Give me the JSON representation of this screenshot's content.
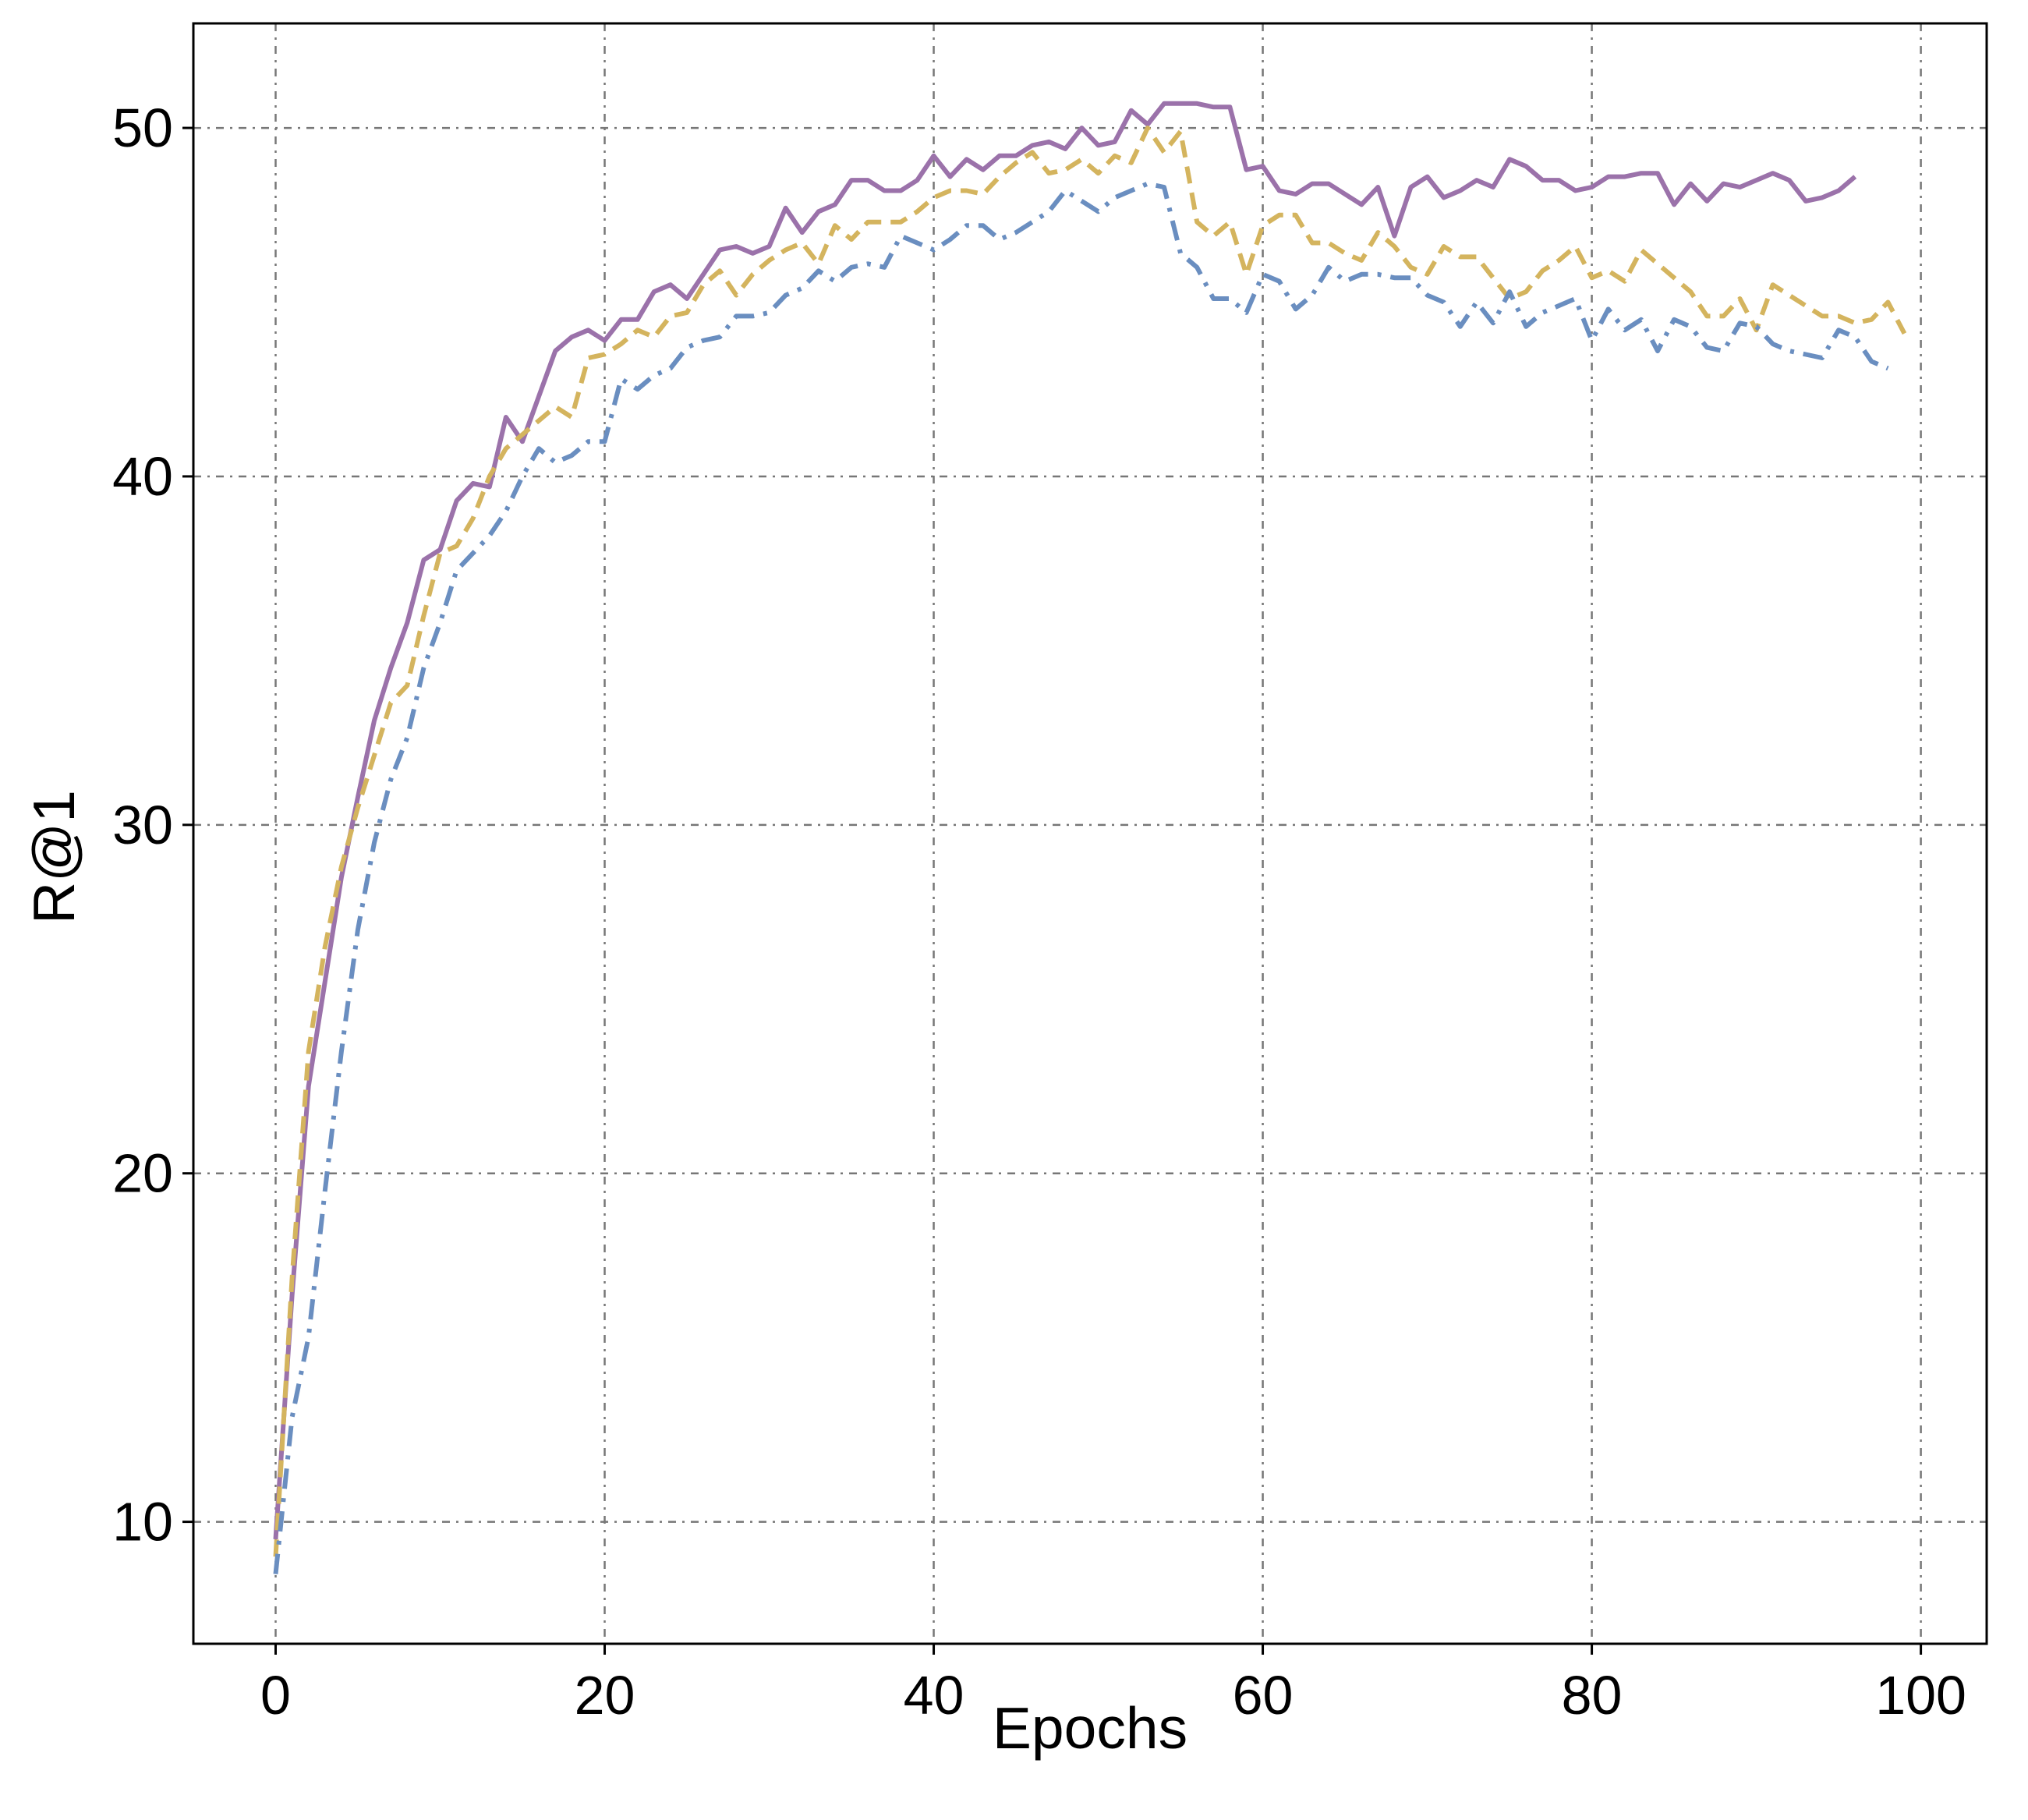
{
  "chart_data": {
    "type": "line",
    "title": "",
    "xlabel": "Epochs",
    "ylabel": "R@1",
    "xlim": [
      -5,
      104
    ],
    "ylim": [
      6.5,
      53
    ],
    "xticks": [
      0,
      20,
      40,
      60,
      80,
      100
    ],
    "yticks": [
      10,
      20,
      30,
      40,
      50
    ],
    "grid": true,
    "legend": "none",
    "series": [
      {
        "color": "#9b72aa",
        "style": "solid",
        "x": [
          0,
          1,
          2,
          3,
          4,
          5,
          6,
          7,
          8,
          9,
          10,
          11,
          12,
          13,
          14,
          15,
          16,
          17,
          18,
          19,
          20,
          21,
          22,
          23,
          24,
          25,
          26,
          27,
          28,
          29,
          30,
          31,
          32,
          33,
          34,
          35,
          36,
          37,
          38,
          39,
          40,
          41,
          42,
          43,
          44,
          45,
          46,
          47,
          48,
          49,
          50,
          51,
          52,
          53,
          54,
          55,
          56,
          57,
          58,
          59,
          60,
          61,
          62,
          63,
          64,
          65,
          66,
          67,
          68,
          69,
          70,
          71,
          72,
          73,
          74,
          75,
          76,
          77,
          78,
          79,
          80,
          81,
          82,
          83,
          84,
          85,
          86,
          87,
          88,
          89,
          90,
          91,
          92,
          93,
          94,
          95,
          96
        ],
        "values": [
          9.5,
          16.5,
          22.5,
          25.5,
          28.5,
          30.8,
          33.0,
          34.5,
          35.8,
          37.6,
          37.9,
          39.3,
          39.8,
          39.7,
          41.7,
          41.0,
          42.3,
          43.6,
          44.0,
          44.2,
          43.9,
          44.5,
          44.5,
          45.3,
          45.5,
          45.1,
          45.8,
          46.5,
          46.6,
          46.4,
          46.6,
          47.7,
          47.0,
          47.6,
          47.8,
          48.5,
          48.5,
          48.2,
          48.2,
          48.5,
          49.2,
          48.6,
          49.1,
          48.8,
          49.2,
          49.2,
          49.5,
          49.6,
          49.4,
          50.0,
          49.5,
          49.6,
          50.5,
          50.1,
          50.7,
          50.7,
          50.7,
          50.6,
          50.6,
          48.8,
          48.9,
          48.2,
          48.1,
          48.4,
          48.4,
          48.1,
          47.8,
          48.3,
          46.9,
          48.3,
          48.6,
          48.0,
          48.2,
          48.5,
          48.3,
          49.1,
          48.9,
          48.5,
          48.5,
          48.2,
          48.3,
          48.6,
          48.6,
          48.7,
          48.7,
          47.8,
          48.4,
          47.9,
          48.4,
          48.3,
          48.5,
          48.7,
          48.5,
          47.9,
          48.0,
          48.2,
          48.6
        ]
      },
      {
        "color": "#d4b45e",
        "style": "dashed",
        "x": [
          0,
          1,
          2,
          3,
          4,
          5,
          6,
          7,
          8,
          9,
          10,
          11,
          12,
          13,
          14,
          15,
          16,
          17,
          18,
          19,
          20,
          21,
          22,
          23,
          24,
          25,
          26,
          27,
          28,
          29,
          30,
          31,
          32,
          33,
          34,
          35,
          36,
          37,
          38,
          39,
          40,
          41,
          42,
          43,
          44,
          45,
          46,
          47,
          48,
          49,
          50,
          51,
          52,
          53,
          54,
          55,
          56,
          57,
          58,
          59,
          60,
          61,
          62,
          63,
          64,
          65,
          66,
          67,
          68,
          69,
          70,
          71,
          72,
          73,
          74,
          75,
          76,
          77,
          78,
          79,
          80,
          81,
          82,
          83,
          84,
          85,
          86,
          87,
          88,
          89,
          90,
          91,
          92,
          93,
          94,
          95,
          96,
          97,
          98,
          99
        ],
        "values": [
          9.0,
          17.0,
          23.5,
          26.5,
          28.8,
          30.5,
          32.0,
          33.5,
          34.0,
          36.0,
          37.8,
          38.0,
          38.8,
          40.0,
          40.8,
          41.2,
          41.6,
          42.0,
          41.7,
          43.4,
          43.5,
          43.8,
          44.2,
          44.0,
          44.6,
          44.7,
          45.5,
          45.9,
          45.2,
          45.8,
          46.2,
          46.5,
          46.7,
          46.1,
          47.2,
          46.8,
          47.3,
          47.3,
          47.3,
          47.6,
          48.0,
          48.2,
          48.2,
          48.1,
          48.6,
          49.0,
          49.3,
          48.7,
          48.8,
          49.1,
          48.7,
          49.2,
          49.0,
          50.0,
          49.3,
          49.9,
          47.3,
          46.9,
          47.3,
          45.8,
          47.2,
          47.5,
          47.5,
          46.7,
          46.7,
          46.4,
          46.2,
          47.0,
          46.6,
          46.0,
          45.8,
          46.6,
          46.3,
          46.3,
          45.7,
          45.1,
          45.3,
          45.9,
          46.2,
          46.6,
          45.7,
          45.9,
          45.6,
          46.5,
          46.1,
          45.7,
          45.3,
          44.6,
          44.6,
          45.1,
          44.2,
          45.5,
          45.2,
          44.9,
          44.6,
          44.6,
          44.4,
          44.5,
          45.0,
          44.1
        ]
      },
      {
        "color": "#6a8ec0",
        "style": "dashdot",
        "x": [
          0,
          1,
          2,
          3,
          4,
          5,
          6,
          7,
          8,
          9,
          10,
          11,
          12,
          13,
          14,
          15,
          16,
          17,
          18,
          19,
          20,
          21,
          22,
          23,
          24,
          25,
          26,
          27,
          28,
          29,
          30,
          31,
          32,
          33,
          34,
          35,
          36,
          37,
          38,
          39,
          40,
          41,
          42,
          43,
          44,
          45,
          46,
          47,
          48,
          49,
          50,
          51,
          52,
          53,
          54,
          55,
          56,
          57,
          58,
          59,
          60,
          61,
          62,
          63,
          64,
          65,
          66,
          67,
          68,
          69,
          70,
          71,
          72,
          73,
          74,
          75,
          76,
          77,
          78,
          79,
          80,
          81,
          82,
          83,
          84,
          85,
          86,
          87,
          88,
          89,
          90,
          91,
          92,
          93,
          94,
          95,
          96,
          97,
          98
        ],
        "values": [
          8.5,
          13.0,
          15.3,
          19.5,
          23.5,
          27.0,
          29.5,
          31.3,
          32.5,
          34.5,
          35.8,
          37.3,
          37.8,
          38.3,
          39.0,
          40.0,
          40.8,
          40.4,
          40.6,
          41.0,
          41.0,
          42.8,
          42.5,
          42.9,
          43.1,
          43.7,
          43.9,
          44.0,
          44.6,
          44.6,
          44.7,
          45.2,
          45.4,
          45.9,
          45.6,
          46.0,
          46.1,
          46.0,
          46.9,
          46.7,
          46.5,
          46.8,
          47.2,
          47.2,
          46.8,
          47.0,
          47.3,
          47.6,
          48.2,
          47.9,
          47.6,
          48.0,
          48.2,
          48.4,
          48.3,
          46.4,
          46.0,
          45.1,
          45.1,
          44.7,
          45.8,
          45.6,
          44.8,
          45.2,
          46.0,
          45.6,
          45.8,
          45.8,
          45.7,
          45.7,
          45.2,
          45.0,
          44.3,
          45.0,
          44.4,
          45.3,
          44.3,
          44.7,
          44.9,
          45.1,
          43.9,
          44.8,
          44.2,
          44.5,
          43.6,
          44.5,
          44.3,
          43.7,
          43.6,
          44.4,
          44.3,
          43.8,
          43.6,
          43.5,
          43.4,
          44.2,
          44.0,
          43.3,
          43.1
        ]
      }
    ]
  }
}
